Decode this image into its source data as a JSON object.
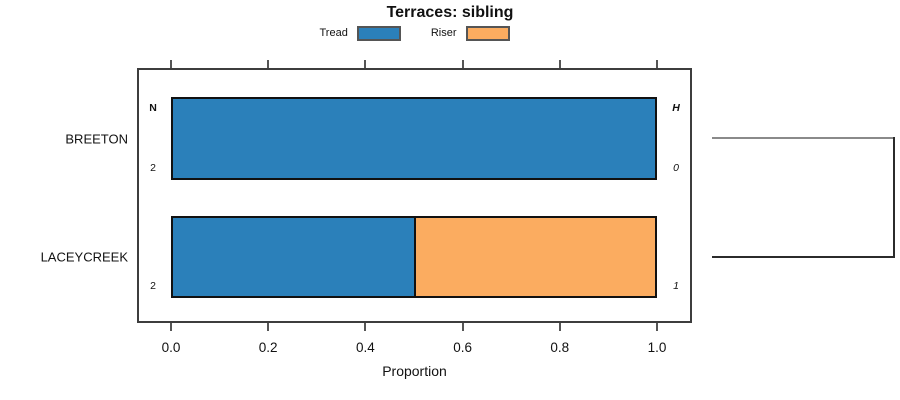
{
  "title": "Terraces: sibling",
  "chart_data": {
    "type": "bar",
    "orientation": "horizontal",
    "stacked": true,
    "title": "Terraces: sibling",
    "xlabel": "Proportion",
    "xlim": [
      0,
      1
    ],
    "xticks": [
      "0.0",
      "0.2",
      "0.4",
      "0.6",
      "0.8",
      "1.0"
    ],
    "grid": false,
    "legend_position": "top",
    "categories": [
      "BREETON",
      "LACEYCREEK"
    ],
    "series": [
      {
        "name": "Tread",
        "color": "#2b80ba",
        "values": [
          1.0,
          0.5
        ]
      },
      {
        "name": "Riser",
        "color": "#fbac60",
        "values": [
          0.0,
          0.5
        ]
      }
    ],
    "row_annotations": {
      "left_header": "N",
      "right_header": "H",
      "rows": [
        {
          "left": "2",
          "right": "0"
        },
        {
          "left": "2",
          "right": "1"
        }
      ]
    },
    "sibling_bracket": true
  }
}
